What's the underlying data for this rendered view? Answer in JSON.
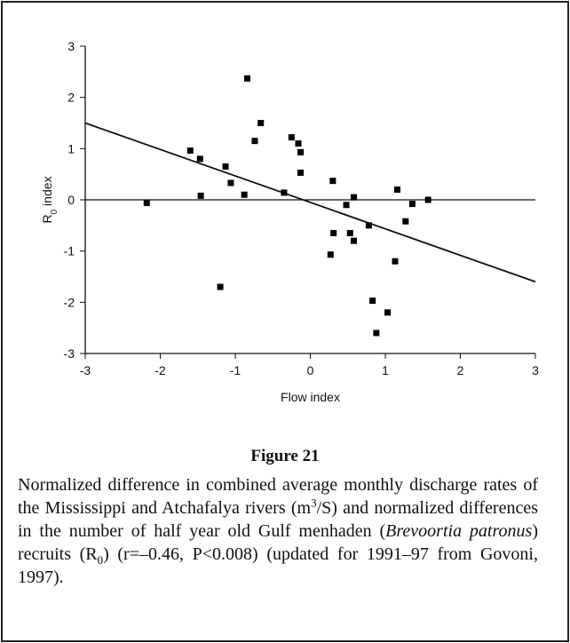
{
  "chart_data": {
    "type": "scatter",
    "xlabel": "Flow index",
    "ylabel_parts": [
      {
        "text": "R",
        "style": "normal"
      },
      {
        "text": "0",
        "style": "sub"
      },
      {
        "text": " index",
        "style": "normal"
      }
    ],
    "x": [
      -2.18,
      -1.6,
      -1.47,
      -1.46,
      -1.2,
      -1.13,
      -1.06,
      -0.88,
      -0.84,
      -0.74,
      -0.66,
      -0.35,
      -0.25,
      -0.16,
      -0.13,
      -0.13,
      0.27,
      0.3,
      0.31,
      0.48,
      0.53,
      0.58,
      0.58,
      0.78,
      0.83,
      0.88,
      1.03,
      1.13,
      1.16,
      1.27,
      1.36,
      1.57
    ],
    "values": [
      -0.06,
      0.96,
      0.8,
      0.08,
      -1.7,
      0.65,
      0.33,
      0.1,
      2.37,
      1.15,
      1.5,
      0.14,
      1.22,
      1.1,
      0.93,
      0.53,
      -1.07,
      0.37,
      -0.65,
      -0.1,
      -0.65,
      0.05,
      -0.8,
      -0.5,
      -1.97,
      -2.6,
      -2.2,
      -1.2,
      0.2,
      -0.42,
      -0.08,
      0.0
    ],
    "color": "#000000",
    "fit_line": {
      "x": [
        -3,
        3
      ],
      "y": [
        1.5,
        -1.6
      ]
    },
    "hline": 0,
    "xlim": [
      -3,
      3
    ],
    "ylim": [
      -3,
      3
    ],
    "xticks": [
      -3,
      -2,
      -1,
      0,
      1,
      2,
      3
    ],
    "yticks": [
      -3,
      -2,
      -1,
      0,
      1,
      2,
      3
    ]
  },
  "caption": {
    "label": "Figure 21",
    "segments": [
      {
        "text": "Normalized difference in combined average monthly discharge rates of the Mississippi and Atchafalya rivers (m",
        "style": "normal"
      },
      {
        "text": "3",
        "style": "sup"
      },
      {
        "text": "/S) and normalized differences in the number of half year old Gulf menhaden (",
        "style": "normal"
      },
      {
        "text": "Brevoortia patronus",
        "style": "italic"
      },
      {
        "text": ") recruits (R",
        "style": "normal"
      },
      {
        "text": "0",
        "style": "sub"
      },
      {
        "text": ") (r=–0.46, P<0.008) (updated for 1991–97 from Govoni, 1997).",
        "style": "normal"
      }
    ]
  }
}
